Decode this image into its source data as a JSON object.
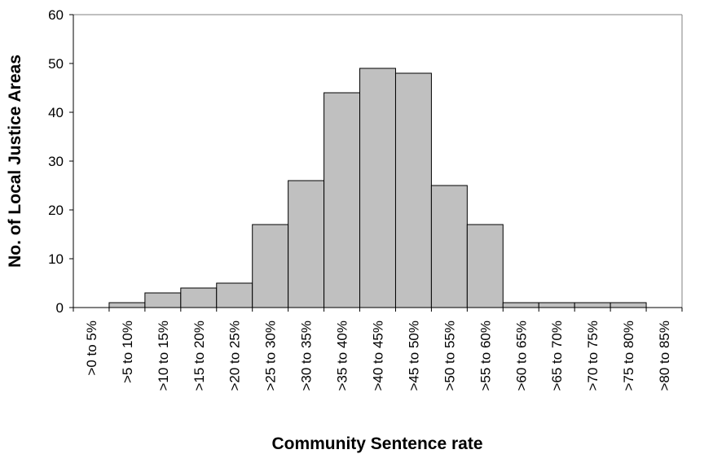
{
  "chart_data": {
    "type": "bar",
    "title": "",
    "xlabel": "Community Sentence rate",
    "ylabel": "No. of Local Justice Areas",
    "ylim": [
      0,
      60
    ],
    "yticks": [
      0,
      10,
      20,
      30,
      40,
      50,
      60
    ],
    "categories": [
      ">0 to 5%",
      ">5 to 10%",
      ">10 to 15%",
      ">15 to 20%",
      ">20 to 25%",
      ">25 to 30%",
      ">30 to 35%",
      ">35 to 40%",
      ">40 to 45%",
      ">45 to 50%",
      ">50 to 55%",
      ">55 to 60%",
      ">60 to 65%",
      ">65 to 70%",
      ">70 to 75%",
      ">75 to 80%",
      ">80 to 85%"
    ],
    "values": [
      0,
      1,
      3,
      4,
      5,
      17,
      26,
      44,
      49,
      48,
      25,
      17,
      1,
      1,
      1,
      1,
      0
    ],
    "grid": false,
    "legend": "none",
    "bar_color": "#c0c0c0",
    "bar_edge_color": "#000000"
  }
}
